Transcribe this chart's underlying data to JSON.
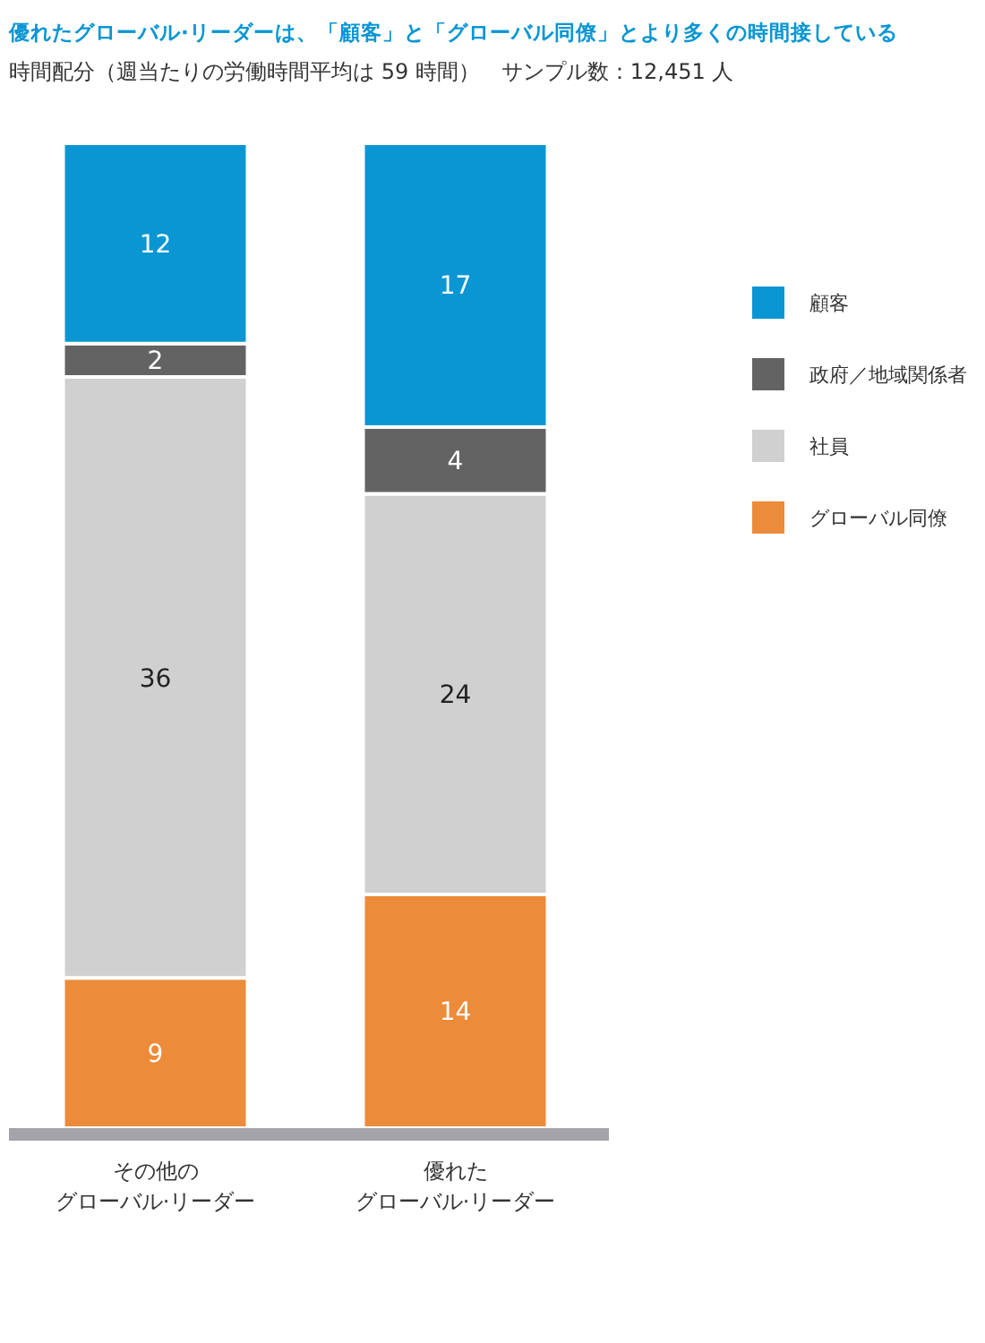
{
  "chart_data": {
    "type": "bar",
    "stacked": true,
    "data_labels": true,
    "legend": "right",
    "title": "優れたグローバル·リーダーは、「顧客」と「グローバル同僚」とより多くの時間接している",
    "subtitle": "時間配分（週当たりの労働時間平均は 59 時間）　サンプル数：12,451 人",
    "categories": [
      "その他のグローバル·リーダー",
      "優れたグローバル·リーダー"
    ],
    "series": [
      {
        "name": "グローバル同僚",
        "color": "#ec8b3a",
        "values": [
          9,
          14
        ]
      },
      {
        "name": "社員",
        "color": "#d0d0d0",
        "values": [
          36,
          24
        ]
      },
      {
        "name": "政府／地域関係者",
        "color": "#636363",
        "values": [
          2,
          4
        ]
      },
      {
        "name": "顧客",
        "color": "#0a96d2",
        "values": [
          12,
          17
        ]
      }
    ]
  }
}
